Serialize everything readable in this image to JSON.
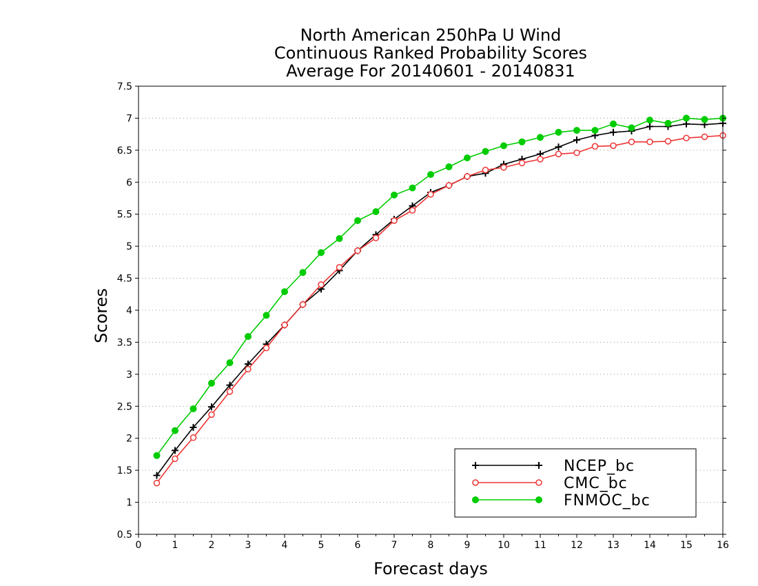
{
  "chart_data": {
    "type": "line",
    "title": [
      "North American 250hPa U Wind",
      "Continuous Ranked Probability Scores",
      "Average For 20140601 - 20140831"
    ],
    "xlabel": "Forecast days",
    "ylabel": "Scores",
    "xlim": [
      0,
      16
    ],
    "ylim": [
      0.5,
      7.5
    ],
    "xticks": [
      "0",
      "1",
      "2",
      "3",
      "4",
      "5",
      "6",
      "7",
      "8",
      "9",
      "10",
      "11",
      "12",
      "13",
      "14",
      "15",
      "16"
    ],
    "yticks": [
      "0.5",
      "1",
      "1.5",
      "2",
      "2.5",
      "3",
      "3.5",
      "4",
      "4.5",
      "5",
      "5.5",
      "6",
      "6.5",
      "7",
      "7.5"
    ],
    "grid": true,
    "legend_position": "bottom-right",
    "x": [
      0.5,
      1,
      1.5,
      2,
      2.5,
      3,
      3.5,
      4,
      4.5,
      5,
      5.5,
      6,
      6.5,
      7,
      7.5,
      8,
      8.5,
      9,
      9.5,
      10,
      10.5,
      11,
      11.5,
      12,
      12.5,
      13,
      13.5,
      14,
      14.5,
      15,
      15.5,
      16
    ],
    "series": [
      {
        "name": "NCEP_bc",
        "color": "#000000",
        "marker": "plus",
        "values": [
          1.42,
          1.81,
          2.17,
          2.49,
          2.83,
          3.16,
          3.47,
          3.77,
          4.09,
          4.33,
          4.62,
          4.93,
          5.18,
          5.42,
          5.63,
          5.84,
          5.95,
          6.09,
          6.14,
          6.28,
          6.36,
          6.44,
          6.55,
          6.66,
          6.73,
          6.78,
          6.8,
          6.87,
          6.87,
          6.91,
          6.9,
          6.92
        ]
      },
      {
        "name": "CMC_bc",
        "color": "#ee3333",
        "marker": "open-circle",
        "values": [
          1.3,
          1.68,
          2.01,
          2.37,
          2.73,
          3.08,
          3.41,
          3.77,
          4.09,
          4.4,
          4.67,
          4.93,
          5.13,
          5.4,
          5.56,
          5.81,
          5.95,
          6.09,
          6.19,
          6.23,
          6.3,
          6.36,
          6.44,
          6.46,
          6.56,
          6.57,
          6.63,
          6.63,
          6.64,
          6.69,
          6.71,
          6.73
        ]
      },
      {
        "name": "FNMOC_bc",
        "color": "#00cc00",
        "marker": "filled-circle",
        "values": [
          1.73,
          2.12,
          2.46,
          2.86,
          3.18,
          3.59,
          3.92,
          4.29,
          4.59,
          4.9,
          5.12,
          5.4,
          5.54,
          5.8,
          5.91,
          6.12,
          6.24,
          6.38,
          6.48,
          6.57,
          6.63,
          6.7,
          6.78,
          6.81,
          6.81,
          6.91,
          6.85,
          6.97,
          6.92,
          7.0,
          6.98,
          7.0
        ]
      }
    ]
  }
}
